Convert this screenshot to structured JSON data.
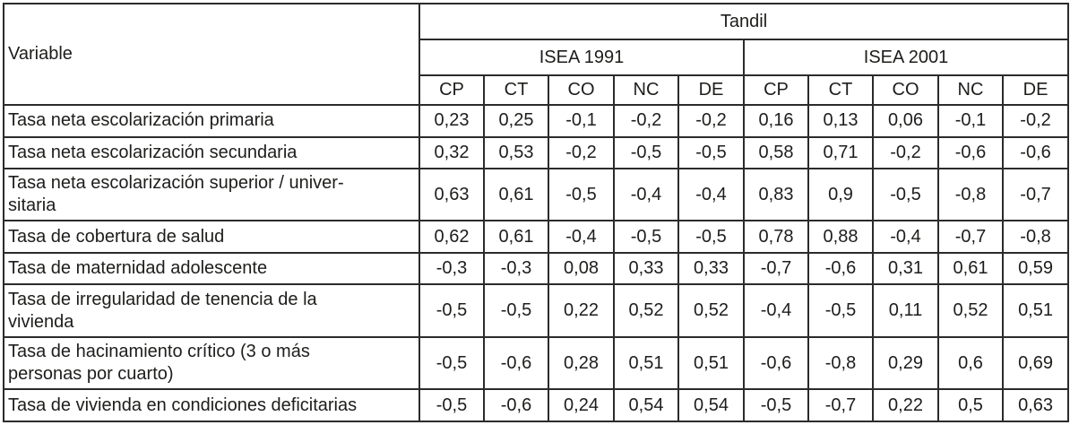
{
  "table": {
    "corner_header": "Variable",
    "group_header": "Tandil",
    "subgroups": [
      {
        "label": "ISEA 1991"
      },
      {
        "label": "ISEA 2001"
      }
    ],
    "columns": [
      "CP",
      "CT",
      "CO",
      "NC",
      "DE",
      "CP",
      "CT",
      "CO",
      "NC",
      "DE"
    ],
    "rows": [
      {
        "variable": "Tasa neta escolarización primaria",
        "values": [
          "0,23",
          "0,25",
          "-0,1",
          "-0,2",
          "-0,2",
          "0,16",
          "0,13",
          "0,06",
          "-0,1",
          "-0,2"
        ]
      },
      {
        "variable": "Tasa neta escolarización secundaria",
        "values": [
          "0,32",
          "0,53",
          "-0,2",
          "-0,5",
          "-0,5",
          "0,58",
          "0,71",
          "-0,2",
          "-0,6",
          "-0,6"
        ]
      },
      {
        "variable": "Tasa neta escolarización superior / univer-\nsitaria",
        "values": [
          "0,63",
          "0,61",
          "-0,5",
          "-0,4",
          "-0,4",
          "0,83",
          "0,9",
          "-0,5",
          "-0,8",
          "-0,7"
        ]
      },
      {
        "variable": "Tasa de cobertura de salud",
        "values": [
          "0,62",
          "0,61",
          "-0,4",
          "-0,5",
          "-0,5",
          "0,78",
          "0,88",
          "-0,4",
          "-0,7",
          "-0,8"
        ]
      },
      {
        "variable": "Tasa de maternidad adolescente",
        "values": [
          "-0,3",
          "-0,3",
          "0,08",
          "0,33",
          "0,33",
          "-0,7",
          "-0,6",
          "0,31",
          "0,61",
          "0,59"
        ]
      },
      {
        "variable": "Tasa de irregularidad de tenencia de la\nvivienda",
        "values": [
          "-0,5",
          "-0,5",
          "0,22",
          "0,52",
          "0,52",
          "-0,4",
          "-0,5",
          "0,11",
          "0,52",
          "0,51"
        ]
      },
      {
        "variable": "Tasa de hacinamiento crítico (3 o más\npersonas por cuarto)",
        "values": [
          "-0,5",
          "-0,6",
          "0,28",
          "0,51",
          "0,51",
          "-0,6",
          "-0,8",
          "0,29",
          "0,6",
          "0,69"
        ]
      },
      {
        "variable": "Tasa de vivienda en condiciones deficitarias",
        "values": [
          "-0,5",
          "-0,6",
          "0,24",
          "0,54",
          "0,54",
          "-0,5",
          "-0,7",
          "0,22",
          "0,5",
          "0,63"
        ]
      }
    ]
  },
  "colors": {
    "border": "#2b2b2b",
    "text": "#1d1d1b",
    "background": "#ffffff"
  }
}
